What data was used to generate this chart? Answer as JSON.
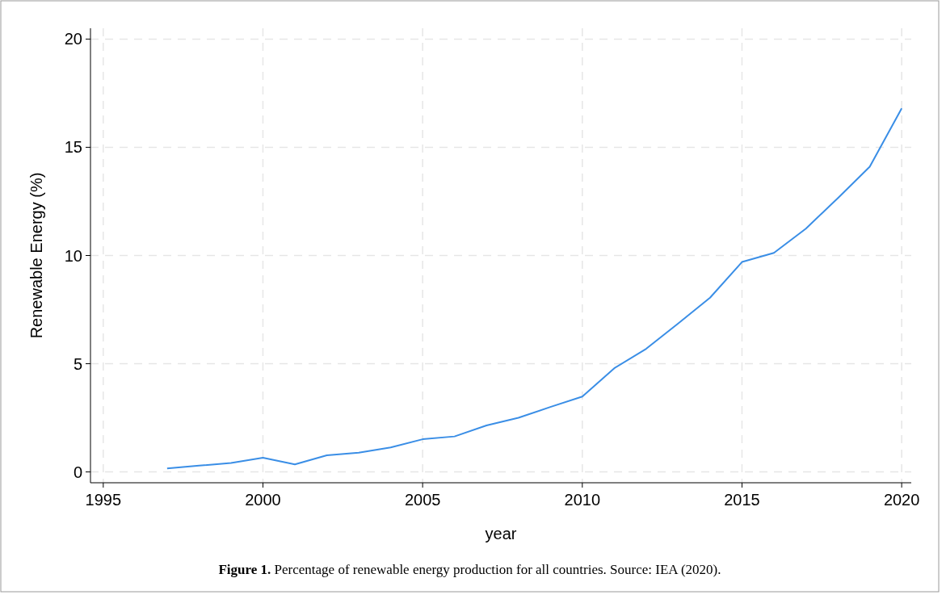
{
  "chart_data": {
    "type": "line",
    "xlabel": "year",
    "ylabel": "Renewable Energy (%)",
    "annotations": [
      "Figure 1. Percentage of renewable energy production for all countries. Source: IEA (2020)."
    ],
    "x": [
      1997,
      1998,
      1999,
      2000,
      2001,
      2002,
      2003,
      2004,
      2005,
      2006,
      2007,
      2008,
      2009,
      2010,
      2011,
      2012,
      2013,
      2014,
      2015,
      2016,
      2017,
      2018,
      2019,
      2020
    ],
    "series": [
      {
        "color": "#3a8ee6",
        "values": [
          0.16,
          0.29,
          0.41,
          0.66,
          0.35,
          0.77,
          0.89,
          1.13,
          1.51,
          1.64,
          2.15,
          2.5,
          3.0,
          3.48,
          4.79,
          5.69,
          6.86,
          8.05,
          9.7,
          10.12,
          11.24,
          12.65,
          14.1,
          16.8
        ]
      }
    ],
    "xlim": [
      1994.6,
      2020.3
    ],
    "xticks": [
      1995,
      2000,
      2005,
      2010,
      2015,
      2020
    ],
    "ylim": [
      -0.5,
      20.5
    ],
    "yticks": [
      0,
      5,
      10,
      15,
      20
    ],
    "grid": true,
    "marker": "none",
    "line_style": "solid"
  }
}
